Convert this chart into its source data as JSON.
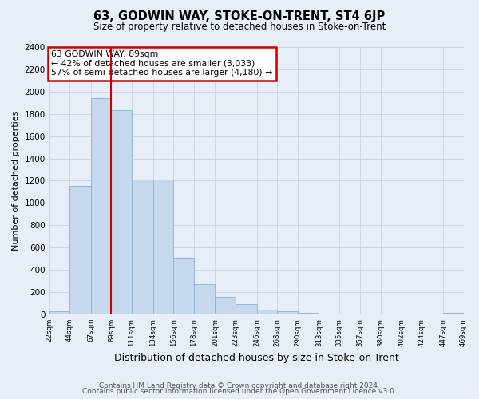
{
  "title": "63, GODWIN WAY, STOKE-ON-TRENT, ST4 6JP",
  "subtitle": "Size of property relative to detached houses in Stoke-on-Trent",
  "xlabel": "Distribution of detached houses by size in Stoke-on-Trent",
  "ylabel": "Number of detached properties",
  "footer1": "Contains HM Land Registry data © Crown copyright and database right 2024.",
  "footer2": "Contains public sector information licensed under the Open Government Licence v3.0.",
  "annotation_title": "63 GODWIN WAY: 89sqm",
  "annotation_line1": "← 42% of detached houses are smaller (3,033)",
  "annotation_line2": "57% of semi-detached houses are larger (4,180) →",
  "property_line_x": 89,
  "bar_color": "#c5d8ed",
  "bar_edge_color": "#88b4d4",
  "property_line_color": "#cc0000",
  "annotation_box_color": "#cc0000",
  "grid_color": "#c8d4e4",
  "bg_color": "#e8eef8",
  "bin_edges": [
    22,
    44,
    67,
    89,
    111,
    134,
    156,
    178,
    201,
    223,
    246,
    268,
    290,
    313,
    335,
    357,
    380,
    402,
    424,
    447,
    469
  ],
  "tick_labels": [
    "22sqm",
    "44sqm",
    "67sqm",
    "89sqm",
    "111sqm",
    "134sqm",
    "156sqm",
    "178sqm",
    "201sqm",
    "223sqm",
    "246sqm",
    "268sqm",
    "290sqm",
    "313sqm",
    "335sqm",
    "357sqm",
    "380sqm",
    "402sqm",
    "424sqm",
    "447sqm",
    "469sqm"
  ],
  "values": [
    25,
    1150,
    1940,
    1835,
    1210,
    1210,
    510,
    270,
    155,
    95,
    45,
    25,
    15,
    8,
    6,
    4,
    4,
    3,
    1,
    15,
    0
  ],
  "ylim": [
    0,
    2400
  ],
  "yticks": [
    0,
    200,
    400,
    600,
    800,
    1000,
    1200,
    1400,
    1600,
    1800,
    2000,
    2200,
    2400
  ]
}
